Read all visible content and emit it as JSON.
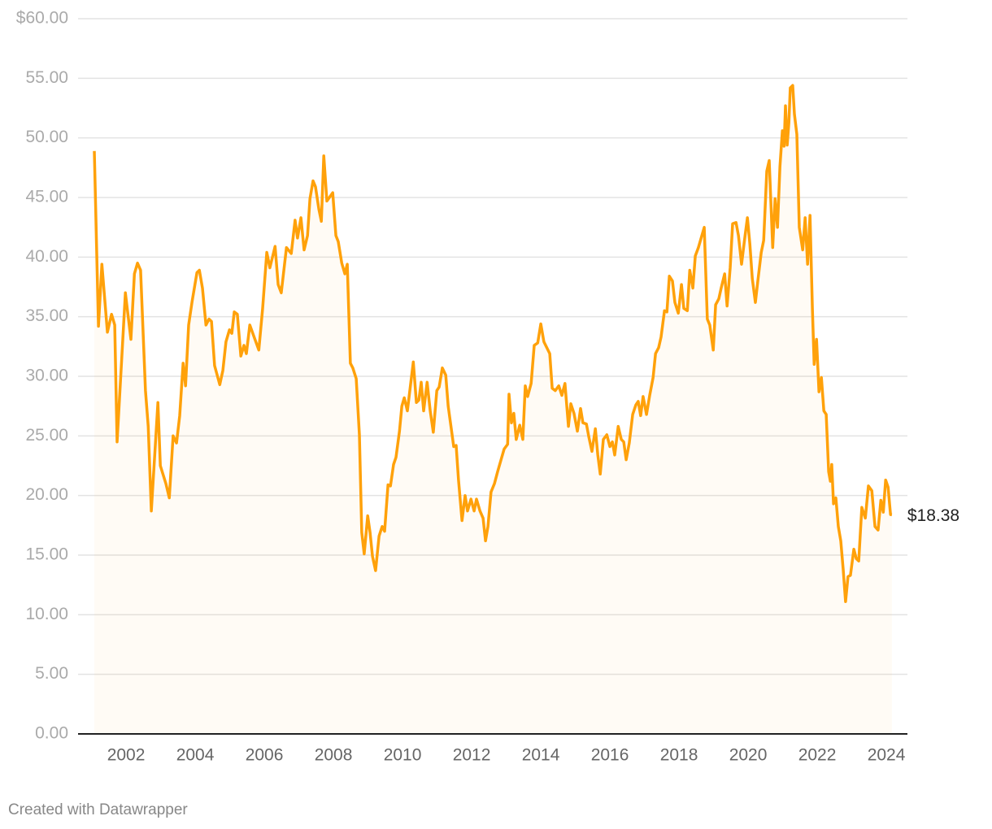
{
  "chart_data": {
    "type": "line",
    "source": "Created with Datawrapper",
    "annotation": "$18.38",
    "x": [
      2001.08,
      2001.2,
      2001.3,
      2001.46,
      2001.58,
      2001.67,
      2001.74,
      2001.98,
      2002.14,
      2002.24,
      2002.33,
      2002.42,
      2002.56,
      2002.64,
      2002.73,
      2002.92,
      2002.99,
      2003.15,
      2003.25,
      2003.36,
      2003.46,
      2003.55,
      2003.65,
      2003.72,
      2003.81,
      2003.91,
      2004.05,
      2004.12,
      2004.21,
      2004.31,
      2004.4,
      2004.47,
      2004.56,
      2004.71,
      2004.8,
      2004.89,
      2004.99,
      2005.06,
      2005.13,
      2005.22,
      2005.32,
      2005.41,
      2005.48,
      2005.58,
      2005.84,
      2005.95,
      2006.07,
      2006.16,
      2006.31,
      2006.4,
      2006.49,
      2006.64,
      2006.78,
      2006.89,
      2006.96,
      2007.06,
      2007.15,
      2007.25,
      2007.32,
      2007.41,
      2007.48,
      2007.58,
      2007.65,
      2007.72,
      2007.81,
      2007.98,
      2008.07,
      2008.14,
      2008.24,
      2008.33,
      2008.4,
      2008.49,
      2008.56,
      2008.66,
      2008.75,
      2008.82,
      2008.89,
      2008.99,
      2009.06,
      2009.13,
      2009.22,
      2009.32,
      2009.41,
      2009.48,
      2009.58,
      2009.65,
      2009.74,
      2009.81,
      2009.91,
      2009.98,
      2010.05,
      2010.14,
      2010.31,
      2010.4,
      2010.47,
      2010.54,
      2010.61,
      2010.71,
      2010.8,
      2010.89,
      2010.99,
      2011.06,
      2011.15,
      2011.25,
      2011.32,
      2011.41,
      2011.48,
      2011.55,
      2011.62,
      2011.72,
      2011.81,
      2011.88,
      2011.98,
      2012.07,
      2012.14,
      2012.24,
      2012.33,
      2012.4,
      2012.47,
      2012.56,
      2012.66,
      2012.75,
      2012.85,
      2012.94,
      2013.04,
      2013.08,
      2013.15,
      2013.22,
      2013.29,
      2013.39,
      2013.48,
      2013.55,
      2013.62,
      2013.72,
      2013.81,
      2013.91,
      2014.0,
      2014.09,
      2014.26,
      2014.33,
      2014.42,
      2014.52,
      2014.61,
      2014.7,
      2014.8,
      2014.87,
      2014.96,
      2015.06,
      2015.15,
      2015.22,
      2015.32,
      2015.39,
      2015.48,
      2015.58,
      2015.65,
      2015.72,
      2015.81,
      2015.91,
      2016.0,
      2016.07,
      2016.14,
      2016.24,
      2016.33,
      2016.4,
      2016.47,
      2016.56,
      2016.66,
      2016.75,
      2016.82,
      2016.89,
      2016.96,
      2017.06,
      2017.15,
      2017.25,
      2017.32,
      2017.41,
      2017.48,
      2017.58,
      2017.65,
      2017.72,
      2017.81,
      2017.88,
      2017.98,
      2018.07,
      2018.14,
      2018.24,
      2018.31,
      2018.4,
      2018.47,
      2018.56,
      2018.73,
      2018.82,
      2018.89,
      2018.99,
      2019.06,
      2019.15,
      2019.22,
      2019.32,
      2019.39,
      2019.48,
      2019.55,
      2019.65,
      2019.72,
      2019.81,
      2019.91,
      2019.98,
      2020.05,
      2020.12,
      2020.21,
      2020.28,
      2020.38,
      2020.45,
      2020.54,
      2020.61,
      2020.71,
      2020.78,
      2020.85,
      2020.92,
      2020.99,
      2021.04,
      2021.08,
      2021.13,
      2021.18,
      2021.22,
      2021.29,
      2021.34,
      2021.41,
      2021.48,
      2021.58,
      2021.65,
      2021.72,
      2021.79,
      2021.86,
      2021.91,
      2021.98,
      2022.05,
      2022.12,
      2022.19,
      2022.26,
      2022.33,
      2022.38,
      2022.42,
      2022.47,
      2022.54,
      2022.61,
      2022.68,
      2022.75,
      2022.82,
      2022.89,
      2022.96,
      2023.06,
      2023.13,
      2023.2,
      2023.29,
      2023.39,
      2023.48,
      2023.58,
      2023.67,
      2023.76,
      2023.84,
      2023.91,
      2023.98,
      2024.05,
      2024.12,
      2024.16
    ],
    "series": [
      {
        "color": "#ffa10a",
        "values": [
          48.9,
          34.2,
          39.4,
          33.7,
          35.2,
          34.3,
          24.5,
          37.0,
          33.1,
          38.6,
          39.5,
          38.9,
          28.8,
          25.8,
          18.7,
          27.8,
          22.5,
          21.0,
          19.8,
          25.0,
          24.4,
          26.7,
          31.1,
          29.2,
          34.3,
          36.3,
          38.7,
          38.9,
          37.4,
          34.3,
          34.8,
          34.6,
          30.9,
          29.3,
          30.5,
          32.9,
          33.9,
          33.6,
          35.4,
          35.2,
          31.7,
          32.6,
          31.9,
          34.3,
          32.2,
          35.7,
          40.4,
          39.1,
          40.9,
          37.7,
          37.0,
          40.8,
          40.3,
          43.1,
          41.6,
          43.3,
          40.6,
          41.8,
          44.9,
          46.4,
          45.9,
          44.0,
          43.0,
          48.5,
          44.7,
          45.4,
          41.8,
          41.3,
          39.5,
          38.6,
          39.4,
          31.1,
          30.7,
          29.8,
          25.1,
          16.9,
          15.1,
          18.3,
          16.9,
          14.9,
          13.7,
          16.6,
          17.4,
          17.0,
          20.9,
          20.8,
          22.6,
          23.2,
          25.4,
          27.5,
          28.2,
          27.1,
          31.2,
          27.8,
          28.0,
          29.5,
          27.1,
          29.5,
          27.1,
          25.3,
          28.8,
          29.1,
          30.7,
          30.1,
          27.5,
          25.6,
          24.1,
          24.2,
          21.3,
          17.9,
          20.0,
          18.7,
          19.7,
          18.7,
          19.7,
          18.7,
          18.1,
          16.2,
          17.4,
          20.3,
          21.0,
          22.0,
          23.0,
          23.9,
          24.3,
          28.5,
          26.1,
          26.9,
          24.7,
          25.9,
          24.7,
          29.2,
          28.3,
          29.4,
          32.6,
          32.8,
          34.4,
          32.9,
          31.9,
          29.0,
          28.8,
          29.2,
          28.4,
          29.4,
          25.8,
          27.7,
          26.9,
          25.4,
          27.3,
          26.1,
          26.0,
          24.9,
          23.7,
          25.6,
          23.4,
          21.8,
          24.7,
          25.1,
          24.1,
          24.5,
          23.4,
          25.8,
          24.7,
          24.5,
          23.0,
          24.4,
          26.8,
          27.6,
          27.9,
          26.7,
          28.3,
          26.8,
          28.4,
          29.9,
          31.9,
          32.4,
          33.3,
          35.5,
          35.4,
          38.4,
          38.0,
          36.2,
          35.3,
          37.7,
          35.7,
          35.5,
          38.9,
          37.4,
          40.1,
          40.8,
          42.5,
          34.8,
          34.3,
          32.2,
          36.0,
          36.5,
          37.4,
          38.6,
          35.9,
          39.1,
          42.8,
          42.9,
          41.8,
          39.4,
          41.8,
          43.3,
          41.1,
          38.2,
          36.2,
          38.0,
          40.4,
          41.4,
          47.2,
          48.1,
          40.8,
          44.9,
          42.5,
          47.6,
          50.6,
          49.3,
          52.7,
          49.4,
          51.3,
          54.2,
          54.4,
          52.0,
          50.3,
          42.5,
          40.6,
          43.3,
          39.4,
          43.5,
          35.7,
          31.0,
          33.1,
          28.7,
          29.9,
          27.1,
          26.8,
          22.0,
          21.2,
          22.6,
          19.3,
          19.8,
          17.4,
          16.2,
          13.8,
          11.1,
          13.2,
          13.3,
          15.5,
          14.7,
          14.5,
          19.0,
          18.1,
          20.8,
          20.4,
          17.4,
          17.1,
          19.6,
          18.6,
          21.3,
          20.7,
          18.4,
          18.38
        ]
      }
    ],
    "xlim": [
      2000.61,
      2024.61
    ],
    "xticks": [
      2002,
      2004,
      2006,
      2008,
      2010,
      2012,
      2014,
      2016,
      2018,
      2020,
      2022,
      2024
    ],
    "ylim": [
      0,
      60
    ],
    "yticks": [
      {
        "value": 0,
        "label": "0.00"
      },
      {
        "value": 5,
        "label": "5.00"
      },
      {
        "value": 10,
        "label": "10.00"
      },
      {
        "value": 15,
        "label": "15.00"
      },
      {
        "value": 20,
        "label": "20.00"
      },
      {
        "value": 25,
        "label": "25.00"
      },
      {
        "value": 30,
        "label": "30.00"
      },
      {
        "value": 35,
        "label": "35.00"
      },
      {
        "value": 40,
        "label": "40.00"
      },
      {
        "value": 45,
        "label": "45.00"
      },
      {
        "value": 50,
        "label": "50.00"
      },
      {
        "value": 55,
        "label": "55.00"
      },
      {
        "value": 60,
        "label": "$60.00"
      }
    ],
    "grid": true
  }
}
